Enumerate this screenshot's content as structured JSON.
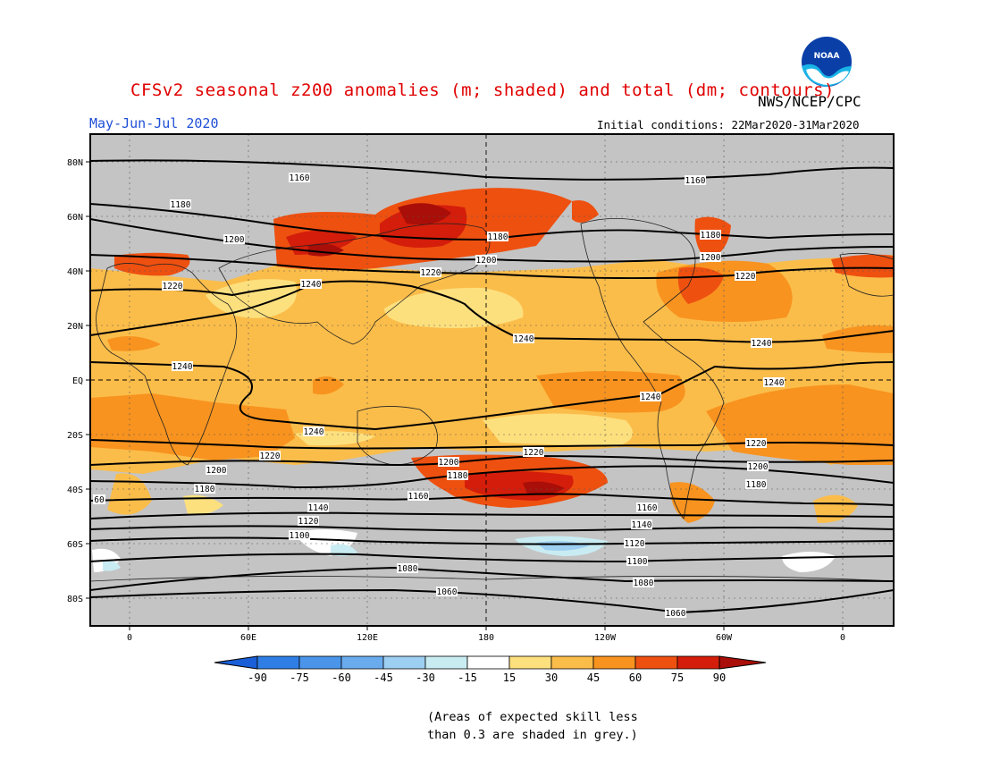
{
  "title": "CFSv2 seasonal z200 anomalies (m; shaded) and total (dm; contours)",
  "agency": "NWS/NCEP/CPC",
  "logo_text": "NOAA",
  "season": "May-Jun-Jul 2020",
  "initial_conditions": "Initial conditions: 22Mar2020-31Mar2020",
  "lat_labels": [
    "80N",
    "60N",
    "40N",
    "20N",
    "EQ",
    "20S",
    "40S",
    "60S",
    "80S"
  ],
  "lon_labels": [
    "0",
    "60E",
    "120E",
    "180",
    "120W",
    "60W",
    "0"
  ],
  "colorbar": {
    "levels": [
      "-90",
      "-75",
      "-60",
      "-45",
      "-30",
      "-15",
      "15",
      "30",
      "45",
      "60",
      "75",
      "90"
    ],
    "colors": [
      "#1a5fd8",
      "#2f7ee6",
      "#4a95ea",
      "#6aabee",
      "#9ccff2",
      "#c9ecf3",
      "#ffffff",
      "#fde07e",
      "#fbbd4a",
      "#f8931f",
      "#ee5010",
      "#d41d0a",
      "#a90e08"
    ]
  },
  "contour_labels": [
    "1160",
    "1180",
    "1200",
    "1220",
    "1240",
    "1140",
    "1120",
    "1100",
    "1080",
    "1060",
    "60"
  ],
  "skill_note": "(Areas of expected skill less\nthan 0.3 are shaded in grey.)"
}
